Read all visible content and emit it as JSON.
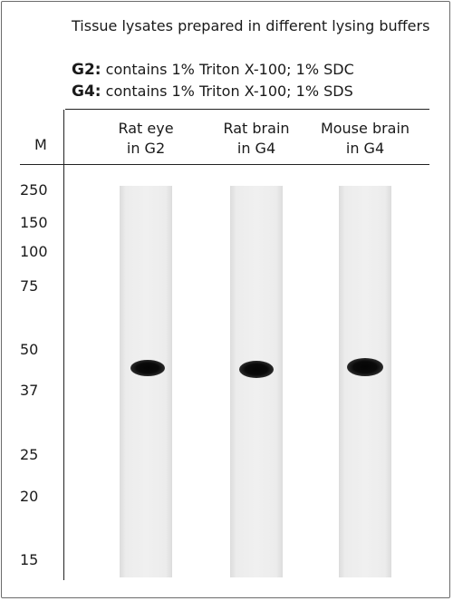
{
  "title": "Tissue lysates prepared in different lysing buffers",
  "buffers": [
    {
      "code": "G2:",
      "description": " contains 1% Triton X-100; 1% SDC"
    },
    {
      "code": "G4:",
      "description": " contains 1% Triton X-100; 1% SDS"
    }
  ],
  "marker_header": "M",
  "lanes": [
    {
      "line1": "Rat eye",
      "line2": "in G2"
    },
    {
      "line1": "Rat brain",
      "line2": "in G4"
    },
    {
      "line1": "Mouse brain",
      "line2": "in G4"
    }
  ],
  "markers": [
    "250",
    "150",
    "100",
    "75",
    "50",
    "37",
    "25",
    "20",
    "15"
  ]
}
